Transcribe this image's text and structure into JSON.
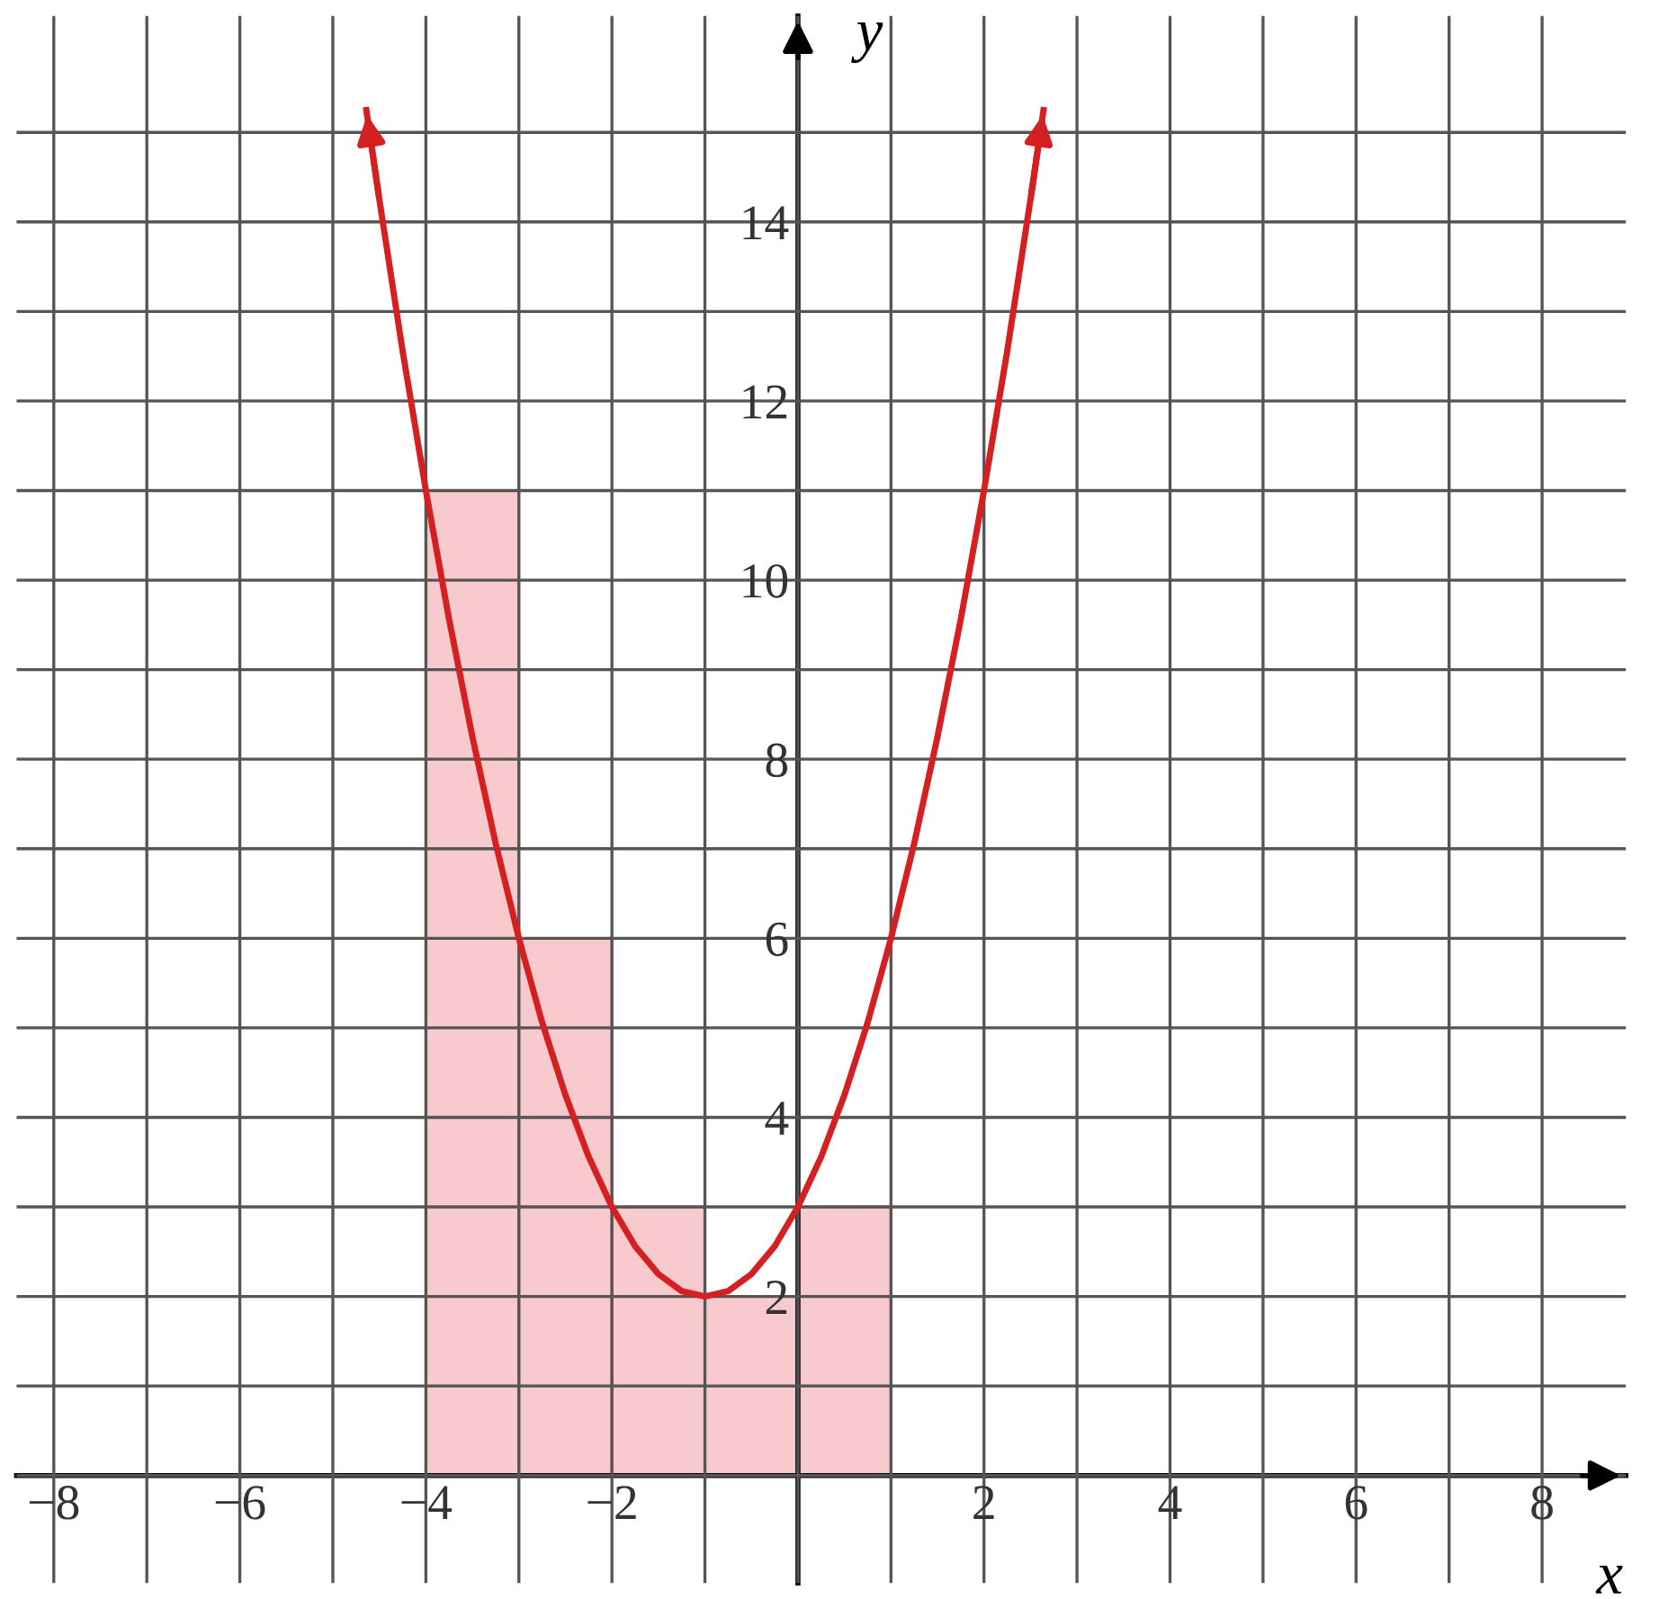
{
  "chart_data": {
    "type": "bar",
    "xlabel": "x",
    "ylabel": "y",
    "xlim": [
      -8.4,
      8.9
    ],
    "ylim": [
      -1.2,
      16.3
    ],
    "xticks": [
      {
        "value": -8,
        "label": "−8"
      },
      {
        "value": -7,
        "label": null
      },
      {
        "value": -6,
        "label": "−6"
      },
      {
        "value": -5,
        "label": null
      },
      {
        "value": -4,
        "label": "−4"
      },
      {
        "value": -3,
        "label": null
      },
      {
        "value": -2,
        "label": "−2"
      },
      {
        "value": -1,
        "label": null
      },
      {
        "value": 0,
        "label": null
      },
      {
        "value": 1,
        "label": null
      },
      2,
      {
        "value": 3,
        "label": null
      },
      4,
      {
        "value": 5,
        "label": null
      },
      6,
      {
        "value": 7,
        "label": null
      },
      8
    ],
    "yticks": [
      {
        "value": 0,
        "label": null
      },
      {
        "value": 1,
        "label": null
      },
      2,
      {
        "value": 3,
        "label": null
      },
      4,
      {
        "value": 5,
        "label": null
      },
      6,
      {
        "value": 7,
        "label": null
      },
      8,
      {
        "value": 9,
        "label": null
      },
      10,
      {
        "value": 11,
        "label": null
      },
      12,
      {
        "value": 13,
        "label": null
      },
      14,
      {
        "value": 15,
        "label": null
      }
    ],
    "grid": true,
    "series": [
      {
        "x": [
          -3.5,
          -2.5,
          -1.5,
          -0.5,
          0.5
        ],
        "values": [
          11,
          6,
          3,
          2,
          3
        ],
        "color": "#f8c8cc"
      },
      {
        "type": "line",
        "x": [
          -4.64,
          -4.5,
          -4.25,
          -4,
          -3.75,
          -3.5,
          -3.25,
          -3,
          -2.75,
          -2.5,
          -2.25,
          -2,
          -1.75,
          -1.5,
          -1.25,
          -1,
          -0.75,
          -0.5,
          -0.25,
          0,
          0.25,
          0.5,
          0.75,
          1,
          1.25,
          1.5,
          1.75,
          2,
          2.25,
          2.5,
          2.64
        ],
        "values": [
          15.25,
          14.25,
          12.56,
          11,
          9.56,
          8.25,
          7.06,
          6,
          5.06,
          4.25,
          3.56,
          3,
          2.56,
          2.25,
          2.06,
          2,
          2.06,
          2.25,
          2.56,
          3,
          3.56,
          4.25,
          5.06,
          6,
          7.06,
          8.25,
          9.56,
          11,
          12.56,
          14.25,
          15.25
        ],
        "color": "#d42020"
      }
    ]
  }
}
